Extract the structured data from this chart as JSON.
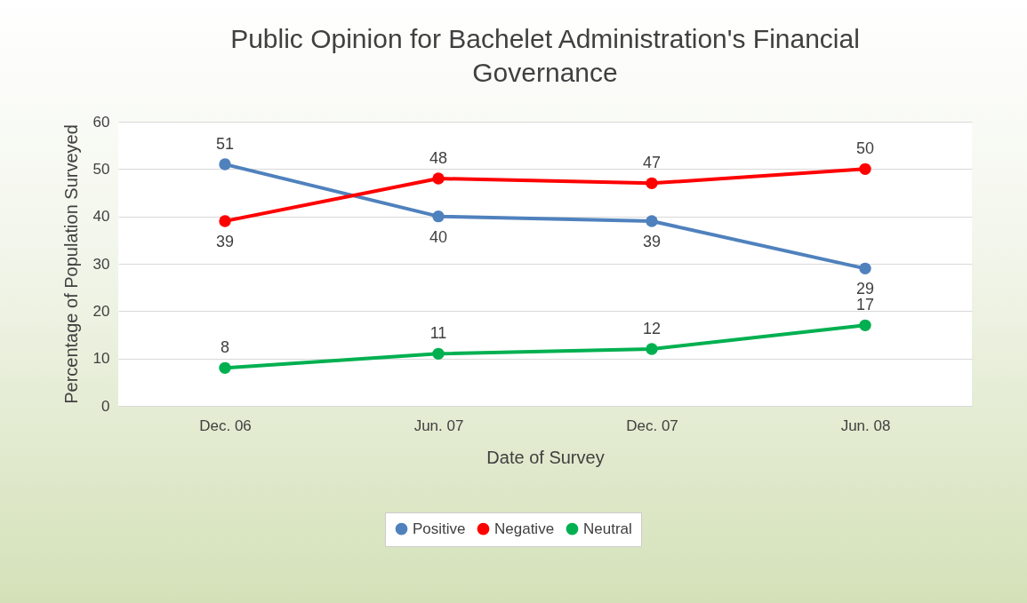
{
  "chart_data": {
    "type": "line",
    "title": "Public Opinion for Bachelet Administration's Financial Governance",
    "xlabel": "Date of Survey",
    "ylabel": "Percentage of Population Surveyed",
    "categories": [
      "Dec. 06",
      "Jun. 07",
      "Dec. 07",
      "Jun. 08"
    ],
    "series": [
      {
        "name": "Positive",
        "color": "#4f81bd",
        "values": [
          51,
          40,
          39,
          29
        ]
      },
      {
        "name": "Negative",
        "color": "#ff0000",
        "values": [
          39,
          48,
          47,
          50
        ]
      },
      {
        "name": "Neutral",
        "color": "#00b050",
        "values": [
          8,
          11,
          12,
          17
        ]
      }
    ],
    "ylim": [
      0,
      60
    ],
    "yticks": [
      0,
      10,
      20,
      30,
      40,
      50,
      60
    ],
    "grid": "y",
    "legend": "bottom",
    "marker": "circle",
    "line_style": "solid",
    "data_labels": true
  }
}
